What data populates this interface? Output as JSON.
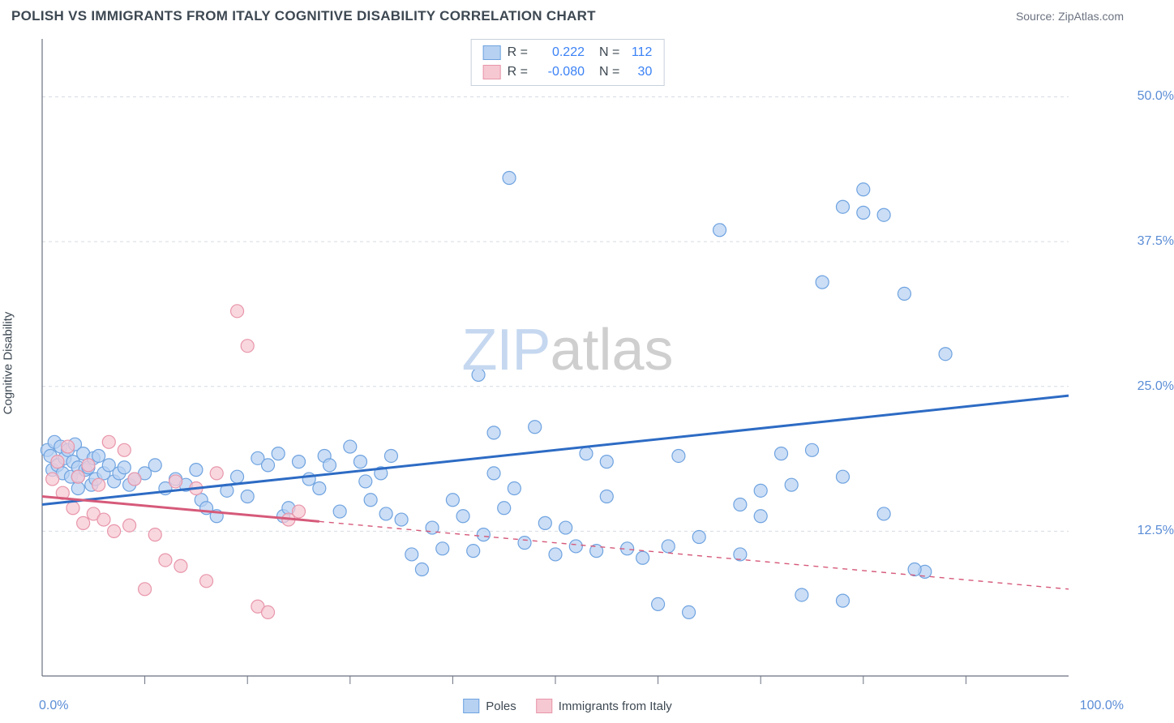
{
  "title": "POLISH VS IMMIGRANTS FROM ITALY COGNITIVE DISABILITY CORRELATION CHART",
  "source": "Source: ZipAtlas.com",
  "ylabel": "Cognitive Disability",
  "xaxis": {
    "min": 0,
    "max": 100,
    "label_left": "0.0%",
    "label_right": "100.0%",
    "ticks": [
      10,
      20,
      30,
      40,
      50,
      60,
      70,
      80,
      90
    ]
  },
  "yaxis": {
    "min": 0,
    "max": 55,
    "ticks": [
      {
        "v": 12.5,
        "l": "12.5%"
      },
      {
        "v": 25,
        "l": "25.0%"
      },
      {
        "v": 37.5,
        "l": "37.5%"
      },
      {
        "v": 50,
        "l": "50.0%"
      }
    ]
  },
  "grid_color": "#d6dbe2",
  "axis_color": "#6b7280",
  "background_color": "#ffffff",
  "watermark": {
    "part1": "ZIP",
    "part2": "atlas"
  },
  "series": [
    {
      "key": "poles",
      "label": "Poles",
      "fill": "#b7d1f2",
      "stroke": "#6fa3e0",
      "line_color": "#2d6bc4",
      "R": "0.222",
      "N": "112",
      "trend": {
        "x1": 0,
        "y1": 14.8,
        "x2": 100,
        "y2": 24.2,
        "dash": false
      },
      "points": [
        [
          0.5,
          19.5
        ],
        [
          0.8,
          19
        ],
        [
          1,
          17.8
        ],
        [
          1.2,
          20.2
        ],
        [
          1.5,
          18.2
        ],
        [
          1.8,
          19.8
        ],
        [
          2,
          17.5
        ],
        [
          2.2,
          18.8
        ],
        [
          2.5,
          19.5
        ],
        [
          2.8,
          17.2
        ],
        [
          3,
          18.5
        ],
        [
          3.2,
          20
        ],
        [
          3.5,
          18
        ],
        [
          3.5,
          17.2
        ],
        [
          3.5,
          16.2
        ],
        [
          4,
          19.2
        ],
        [
          4.2,
          17.8
        ],
        [
          4.5,
          18
        ],
        [
          4.8,
          16.5
        ],
        [
          5,
          18.8
        ],
        [
          5.2,
          17
        ],
        [
          5.5,
          19
        ],
        [
          6,
          17.5
        ],
        [
          6.5,
          18.2
        ],
        [
          7,
          16.8
        ],
        [
          7.5,
          17.5
        ],
        [
          8,
          18
        ],
        [
          8.5,
          16.5
        ],
        [
          9,
          17
        ],
        [
          10,
          17.5
        ],
        [
          11,
          18.2
        ],
        [
          12,
          16.2
        ],
        [
          13,
          17
        ],
        [
          14,
          16.5
        ],
        [
          15,
          17.8
        ],
        [
          15.5,
          15.2
        ],
        [
          16,
          14.5
        ],
        [
          17,
          13.8
        ],
        [
          18,
          16
        ],
        [
          19,
          17.2
        ],
        [
          20,
          15.5
        ],
        [
          21,
          18.8
        ],
        [
          22,
          18.2
        ],
        [
          23,
          19.2
        ],
        [
          23.5,
          13.8
        ],
        [
          24,
          14.5
        ],
        [
          25,
          18.5
        ],
        [
          26,
          17
        ],
        [
          27,
          16.2
        ],
        [
          27.5,
          19
        ],
        [
          28,
          18.2
        ],
        [
          29,
          14.2
        ],
        [
          30,
          19.8
        ],
        [
          31,
          18.5
        ],
        [
          31.5,
          16.8
        ],
        [
          32,
          15.2
        ],
        [
          33,
          17.5
        ],
        [
          33.5,
          14
        ],
        [
          34,
          19
        ],
        [
          35,
          13.5
        ],
        [
          36,
          10.5
        ],
        [
          37,
          9.2
        ],
        [
          38,
          12.8
        ],
        [
          39,
          11
        ],
        [
          40,
          15.2
        ],
        [
          41,
          13.8
        ],
        [
          42,
          10.8
        ],
        [
          42.5,
          26
        ],
        [
          43,
          12.2
        ],
        [
          44,
          17.5
        ],
        [
          44,
          21
        ],
        [
          45,
          14.5
        ],
        [
          45.5,
          43
        ],
        [
          46,
          16.2
        ],
        [
          47,
          11.5
        ],
        [
          48,
          21.5
        ],
        [
          49,
          13.2
        ],
        [
          50,
          10.5
        ],
        [
          51,
          12.8
        ],
        [
          52,
          11.2
        ],
        [
          53,
          19.2
        ],
        [
          54,
          10.8
        ],
        [
          55,
          15.5
        ],
        [
          55,
          18.5
        ],
        [
          57,
          11
        ],
        [
          58.5,
          10.2
        ],
        [
          60,
          6.2
        ],
        [
          61,
          11.2
        ],
        [
          62,
          19
        ],
        [
          63,
          5.5
        ],
        [
          66,
          38.5
        ],
        [
          68,
          10.5
        ],
        [
          70,
          13.8
        ],
        [
          72,
          19.2
        ],
        [
          74,
          7
        ],
        [
          76,
          34
        ],
        [
          78,
          40.5
        ],
        [
          80,
          42
        ],
        [
          80,
          40
        ],
        [
          82,
          39.8
        ],
        [
          84,
          33
        ],
        [
          86,
          9
        ],
        [
          88,
          27.8
        ],
        [
          73,
          16.5
        ],
        [
          78,
          6.5
        ],
        [
          64,
          12
        ],
        [
          68,
          14.8
        ],
        [
          70,
          16
        ],
        [
          75,
          19.5
        ],
        [
          78,
          17.2
        ],
        [
          82,
          14
        ],
        [
          85,
          9.2
        ]
      ]
    },
    {
      "key": "italy",
      "label": "Immigrants from Italy",
      "fill": "#f6c8d2",
      "stroke": "#e896aa",
      "line_color": "#d65a7a",
      "R": "-0.080",
      "N": "30",
      "trend": {
        "x1": 0,
        "y1": 15.5,
        "x2": 100,
        "y2": 7.5,
        "dash_after": 27
      },
      "points": [
        [
          1,
          17
        ],
        [
          1.5,
          18.5
        ],
        [
          2,
          15.8
        ],
        [
          2.5,
          19.8
        ],
        [
          3,
          14.5
        ],
        [
          3.5,
          17.2
        ],
        [
          4,
          13.2
        ],
        [
          4.5,
          18.2
        ],
        [
          5,
          14
        ],
        [
          5.5,
          16.5
        ],
        [
          6,
          13.5
        ],
        [
          6.5,
          20.2
        ],
        [
          7,
          12.5
        ],
        [
          8,
          19.5
        ],
        [
          8.5,
          13
        ],
        [
          9,
          17
        ],
        [
          10,
          7.5
        ],
        [
          11,
          12.2
        ],
        [
          12,
          10
        ],
        [
          13,
          16.8
        ],
        [
          13.5,
          9.5
        ],
        [
          15,
          16.2
        ],
        [
          16,
          8.2
        ],
        [
          17,
          17.5
        ],
        [
          19,
          31.5
        ],
        [
          20,
          28.5
        ],
        [
          21,
          6
        ],
        [
          22,
          5.5
        ],
        [
          24,
          13.5
        ],
        [
          25,
          14.2
        ]
      ]
    }
  ],
  "marker_radius": 8,
  "marker_opacity": 0.72,
  "line_width": 3
}
